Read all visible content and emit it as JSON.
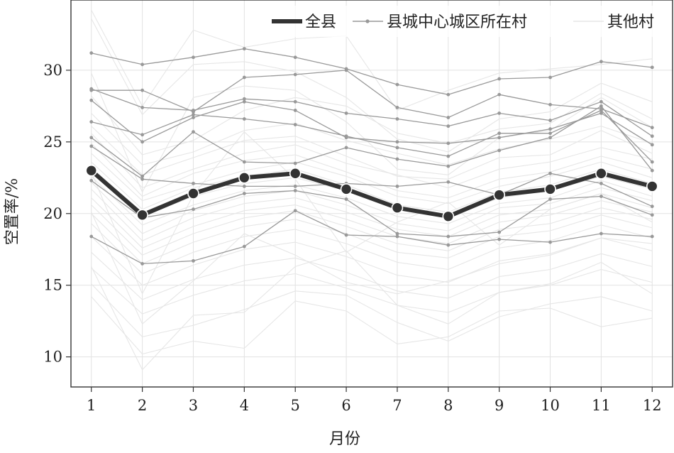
{
  "chart_data": {
    "type": "line",
    "xlabel": "月份",
    "ylabel": "空置率/%",
    "xlim": [
      0.6,
      12.4
    ],
    "ylim": [
      7.9,
      34.9
    ],
    "grid": true,
    "legend_placement": "top-right",
    "x_ticks": [
      "1",
      "2",
      "3",
      "4",
      "5",
      "6",
      "7",
      "8",
      "9",
      "10",
      "11",
      "12"
    ],
    "y_ticks": [
      10,
      15,
      20,
      25,
      30
    ],
    "x": [
      1,
      2,
      3,
      4,
      5,
      6,
      7,
      8,
      9,
      10,
      11,
      12
    ],
    "series": [
      {
        "name": "全县",
        "role": "county",
        "color": "#333333",
        "values": [
          23.0,
          19.9,
          21.4,
          22.5,
          22.8,
          21.7,
          20.4,
          19.8,
          21.3,
          21.7,
          22.8,
          21.9
        ]
      },
      {
        "name": "县城中心城区所在村",
        "role": "center",
        "color": "#999999",
        "lines": [
          [
            31.2,
            30.4,
            30.9,
            31.5,
            30.9,
            30.1,
            29.0,
            28.3,
            29.4,
            29.5,
            30.6,
            30.2
          ],
          [
            28.6,
            28.6,
            27.1,
            29.5,
            29.7,
            30.0,
            27.4,
            26.7,
            28.3,
            27.6,
            27.3,
            26.0
          ],
          [
            28.7,
            27.4,
            27.2,
            28.0,
            27.8,
            27.0,
            26.6,
            26.1,
            27.0,
            26.5,
            27.8,
            25.4
          ],
          [
            27.9,
            25.0,
            26.7,
            27.8,
            27.2,
            25.3,
            25.0,
            24.9,
            25.3,
            25.9,
            27.0,
            24.8
          ],
          [
            26.4,
            25.5,
            26.9,
            26.6,
            26.2,
            25.4,
            24.6,
            24.0,
            25.6,
            25.6,
            27.2,
            23.6
          ],
          [
            25.3,
            22.6,
            25.7,
            23.6,
            23.5,
            24.6,
            23.8,
            23.3,
            24.4,
            25.3,
            27.5,
            23.0
          ],
          [
            24.7,
            22.4,
            22.1,
            21.9,
            21.9,
            22.1,
            21.9,
            22.2,
            21.3,
            22.8,
            22.1,
            20.5
          ],
          [
            22.3,
            19.7,
            20.3,
            21.4,
            21.6,
            21.0,
            18.6,
            18.4,
            18.7,
            21.0,
            21.2,
            19.9
          ],
          [
            18.4,
            16.5,
            16.7,
            17.7,
            20.2,
            18.5,
            18.4,
            17.8,
            18.2,
            18.0,
            18.6,
            18.4
          ]
        ]
      },
      {
        "name": "其他村",
        "role": "other",
        "color": "#e6e6e6",
        "lines": [
          [
            34.2,
            27.5,
            32.8,
            31.6,
            32.2,
            32.4,
            27.2,
            28.6,
            29.8,
            30.1,
            30.4,
            30.8
          ],
          [
            28.2,
            24.1,
            25.1,
            27.2,
            28.1,
            27.5,
            25.6,
            24.9,
            25.9,
            26.3,
            28.4,
            26.6
          ],
          [
            27.0,
            23.4,
            24.3,
            25.8,
            26.3,
            25.1,
            24.2,
            23.4,
            24.5,
            25.2,
            26.1,
            24.9
          ],
          [
            26.1,
            22.7,
            23.9,
            25.1,
            25.4,
            24.0,
            22.6,
            22.4,
            23.9,
            24.1,
            25.8,
            24.2
          ],
          [
            25.6,
            21.8,
            23.1,
            24.2,
            24.8,
            23.5,
            22.7,
            21.8,
            23.1,
            23.6,
            24.6,
            23.8
          ],
          [
            24.9,
            21.2,
            22.8,
            23.7,
            24.1,
            22.9,
            21.6,
            21.1,
            22.4,
            22.9,
            24.0,
            23.1
          ],
          [
            24.2,
            20.9,
            22.0,
            23.0,
            23.6,
            22.6,
            21.2,
            20.7,
            21.9,
            22.6,
            23.6,
            22.5
          ],
          [
            23.6,
            20.3,
            21.8,
            22.6,
            23.1,
            22.0,
            20.6,
            20.1,
            21.5,
            22.0,
            23.1,
            22.1
          ],
          [
            23.1,
            19.8,
            21.2,
            22.1,
            22.5,
            21.6,
            20.3,
            19.7,
            21.1,
            21.6,
            22.6,
            21.7
          ],
          [
            22.6,
            19.2,
            20.6,
            21.6,
            22.0,
            21.1,
            19.8,
            19.3,
            20.7,
            21.1,
            22.3,
            21.2
          ],
          [
            22.2,
            18.6,
            20.2,
            21.2,
            21.6,
            20.6,
            19.3,
            18.8,
            20.4,
            20.7,
            21.8,
            20.9
          ],
          [
            21.7,
            18.1,
            19.7,
            20.7,
            21.1,
            20.1,
            18.9,
            18.4,
            19.9,
            20.3,
            21.4,
            20.4
          ],
          [
            21.1,
            17.6,
            19.1,
            20.2,
            20.6,
            19.6,
            18.4,
            17.9,
            19.4,
            19.9,
            20.9,
            20.1
          ],
          [
            20.6,
            17.1,
            18.6,
            19.7,
            20.2,
            19.1,
            17.9,
            17.4,
            18.9,
            19.3,
            20.4,
            19.6
          ],
          [
            20.0,
            16.5,
            18.0,
            19.1,
            19.6,
            18.6,
            17.3,
            16.9,
            18.4,
            18.8,
            19.9,
            19.0
          ],
          [
            19.3,
            15.8,
            17.3,
            18.4,
            18.9,
            17.9,
            16.6,
            16.1,
            17.6,
            18.1,
            19.2,
            18.3
          ],
          [
            18.4,
            15.0,
            16.4,
            17.5,
            18.0,
            17.0,
            15.7,
            15.2,
            16.7,
            17.2,
            18.3,
            17.4
          ],
          [
            17.3,
            14.0,
            15.4,
            16.4,
            16.9,
            15.9,
            14.6,
            14.1,
            15.6,
            16.1,
            17.2,
            16.3
          ],
          [
            16.2,
            13.0,
            14.3,
            15.3,
            15.8,
            14.8,
            13.6,
            13.1,
            14.5,
            15.0,
            16.1,
            15.2
          ],
          [
            15.1,
            11.4,
            12.2,
            13.3,
            14.6,
            14.3,
            12.4,
            11.1,
            12.8,
            13.7,
            14.2,
            13.2
          ],
          [
            33.6,
            26.9,
            30.4,
            30.6,
            29.9,
            28.1,
            25.2,
            24.3,
            26.6,
            27.1,
            29.1,
            27.8
          ],
          [
            29.8,
            21.5,
            28.1,
            28.9,
            28.6,
            26.4,
            23.1,
            22.7,
            25.3,
            25.8,
            28.1,
            26.0
          ],
          [
            22.9,
            14.4,
            21.3,
            25.7,
            22.4,
            17.3,
            19.4,
            20.8,
            17.8,
            20.3,
            21.4,
            19.4
          ],
          [
            20.1,
            12.3,
            15.3,
            18.6,
            17.1,
            15.2,
            14.4,
            15.3,
            16.5,
            17.1,
            18.3,
            17.9
          ],
          [
            16.3,
            9.1,
            12.9,
            13.1,
            16.3,
            17.4,
            13.6,
            12.3,
            14.5,
            15.1,
            16.6,
            14.4
          ],
          [
            14.2,
            10.2,
            11.1,
            10.6,
            13.9,
            13.2,
            10.9,
            11.4,
            13.2,
            13.4,
            12.1,
            12.7
          ]
        ]
      }
    ]
  }
}
